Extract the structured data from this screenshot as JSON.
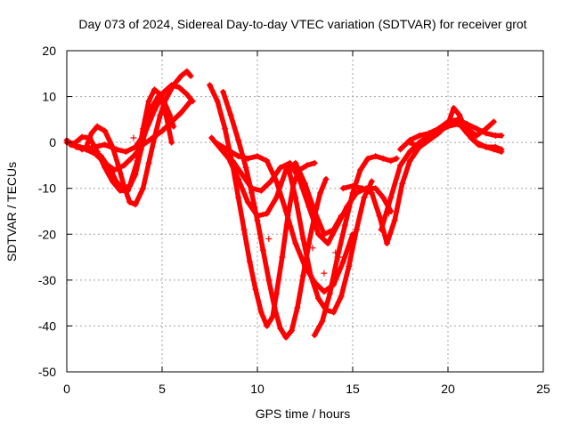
{
  "chart_data": {
    "type": "scatter",
    "title": "Day 073 of 2024, Sidereal Day-to-day VTEC variation (SDTVAR) for receiver grot",
    "xlabel": "GPS time / hours",
    "ylabel": "SDTVAR / TECUs",
    "xlim": [
      0,
      25
    ],
    "ylim": [
      -50,
      20
    ],
    "xticks": [
      0,
      5,
      10,
      15,
      20,
      25
    ],
    "yticks": [
      -50,
      -40,
      -30,
      -20,
      -10,
      0,
      10,
      20
    ],
    "xtick_labels": [
      "0",
      "5",
      "10",
      "15",
      "20",
      "25"
    ],
    "ytick_labels": [
      "-50",
      "-40",
      "-30",
      "-20",
      "-10",
      "0",
      "10",
      "20"
    ],
    "grid": true,
    "marker": "plus",
    "color": "#ff0000",
    "series": [
      {
        "x": [
          0.0,
          0.3,
          0.7,
          1.2,
          1.8,
          2.3,
          2.6,
          2.9,
          3.3,
          3.7,
          4.0,
          4.3,
          4.6,
          4.9,
          5.2,
          5.5
        ],
        "y": [
          0.5,
          -0.5,
          -1.0,
          -1.5,
          -3.0,
          -6.0,
          -8.5,
          -10.0,
          -9.5,
          -4.0,
          3.0,
          9.0,
          11.5,
          10.5,
          6.0,
          0.0
        ]
      },
      {
        "x": [
          0.0,
          0.4,
          0.8,
          1.2,
          1.6,
          2.0,
          2.4,
          2.8,
          3.2,
          3.6,
          3.9,
          4.2,
          4.5,
          4.8,
          5.1,
          5.4,
          5.6
        ],
        "y": [
          0.0,
          -0.2,
          1.2,
          1.0,
          -2.0,
          -5.5,
          -8.5,
          -10.5,
          -10.5,
          -7.0,
          -1.5,
          4.0,
          8.0,
          10.0,
          9.0,
          6.0,
          3.5
        ]
      },
      {
        "x": [
          0.2,
          0.6,
          1.0,
          1.3,
          1.6,
          2.0,
          2.4,
          2.7,
          3.0,
          3.3,
          3.6,
          4.0,
          4.3,
          4.6,
          4.9,
          5.2,
          5.6,
          6.0,
          6.3,
          6.5
        ],
        "y": [
          -0.5,
          -1.0,
          -1.2,
          2.0,
          3.5,
          2.5,
          -1.0,
          -5.0,
          -9.5,
          -13.0,
          -13.5,
          -10.0,
          -4.5,
          1.0,
          6.0,
          9.5,
          12.5,
          14.5,
          15.5,
          14.5
        ]
      },
      {
        "x": [
          0.8,
          1.4,
          2.0,
          2.6,
          3.1,
          3.6,
          4.1,
          4.6,
          5.1,
          5.5,
          5.9,
          6.3,
          6.6
        ],
        "y": [
          -1.5,
          -1.0,
          -0.5,
          -1.5,
          -2.0,
          -1.0,
          2.0,
          7.0,
          11.0,
          12.5,
          12.0,
          10.5,
          9.0
        ]
      },
      {
        "x": [
          0.5,
          1.0,
          1.5,
          2.0,
          2.5,
          3.0,
          3.5,
          4.0,
          4.5,
          5.0,
          5.5,
          6.0,
          6.5
        ],
        "y": [
          -1.0,
          -1.5,
          -2.5,
          -4.5,
          -6.0,
          -5.0,
          -3.0,
          -0.5,
          1.0,
          2.5,
          4.5,
          6.5,
          9.0
        ]
      },
      {
        "x": [
          7.5,
          7.9,
          8.3,
          8.7,
          9.0,
          9.3,
          9.6,
          9.9,
          10.2,
          10.5,
          10.8,
          11.0,
          11.3,
          11.6,
          11.9,
          12.2,
          12.6,
          13.0
        ],
        "y": [
          12.5,
          9.0,
          3.0,
          -5.0,
          -12.0,
          -19.0,
          -26.0,
          -32.0,
          -37.0,
          -40.0,
          -38.0,
          -33.0,
          -25.0,
          -16.0,
          -9.0,
          -6.0,
          -5.0,
          -4.5
        ]
      },
      {
        "x": [
          8.2,
          8.6,
          9.0,
          9.4,
          9.7,
          10.0,
          10.3,
          10.6,
          10.9,
          11.2,
          11.5,
          11.8,
          12.1,
          12.4,
          12.7,
          13.0,
          13.3,
          13.6
        ],
        "y": [
          11.0,
          6.0,
          0.5,
          -5.5,
          -11.0,
          -17.0,
          -23.5,
          -30.0,
          -36.0,
          -40.5,
          -42.5,
          -41.0,
          -36.0,
          -29.0,
          -22.0,
          -16.0,
          -11.0,
          -8.0
        ]
      },
      {
        "x": [
          7.6,
          8.0,
          8.5,
          9.0,
          9.5,
          10.0,
          10.5,
          11.0,
          11.5,
          12.0,
          12.5,
          13.0,
          13.5,
          14.0,
          14.4
        ],
        "y": [
          1.0,
          -1.0,
          -3.5,
          -8.0,
          -13.0,
          -16.0,
          -15.5,
          -12.0,
          -6.0,
          -4.5,
          -9.0,
          -15.0,
          -20.0,
          -19.0,
          -16.0
        ]
      },
      {
        "x": [
          7.8,
          8.4,
          9.0,
          9.5,
          10.0,
          10.5,
          11.0,
          11.5,
          12.0,
          12.5,
          13.0,
          13.5,
          14.0,
          14.5,
          15.0
        ],
        "y": [
          0.0,
          -1.5,
          -3.0,
          -3.5,
          -3.0,
          -4.0,
          -8.5,
          -15.0,
          -22.0,
          -27.0,
          -30.5,
          -32.5,
          -31.0,
          -26.0,
          -20.0
        ]
      },
      {
        "x": [
          8.7,
          9.2,
          9.7,
          10.2,
          10.7,
          11.2,
          11.7,
          12.2,
          12.7,
          13.2,
          13.7,
          14.2,
          14.7,
          15.2,
          15.7,
          16.2,
          16.6,
          17.0
        ],
        "y": [
          -4.0,
          -7.0,
          -10.0,
          -10.5,
          -8.5,
          -5.5,
          -4.5,
          -8.0,
          -14.0,
          -20.0,
          -22.0,
          -18.0,
          -14.0,
          -11.0,
          -10.0,
          -10.0,
          -12.0,
          -15.0
        ]
      },
      {
        "x": [
          11.6,
          12.0,
          12.4,
          12.8,
          13.2,
          13.6,
          14.0,
          14.4,
          14.8,
          15.2,
          15.6,
          16.0
        ],
        "y": [
          -5.0,
          -12.0,
          -21.0,
          -29.0,
          -34.0,
          -36.5,
          -37.0,
          -33.5,
          -27.0,
          -19.0,
          -12.0,
          -8.5
        ]
      },
      {
        "x": [
          13.0,
          13.4,
          13.8,
          14.2,
          14.6,
          15.0,
          15.4,
          15.8,
          16.2,
          16.6,
          17.0,
          17.3
        ],
        "y": [
          -42.0,
          -39.0,
          -33.0,
          -25.0,
          -18.0,
          -11.0,
          -6.0,
          -3.5,
          -3.0,
          -3.5,
          -4.0,
          -3.5
        ]
      },
      {
        "x": [
          14.5,
          15.0,
          15.5,
          16.0,
          16.4,
          16.8,
          17.2,
          17.6,
          18.0,
          18.5,
          19.0,
          19.5,
          20.0,
          20.5,
          21.0,
          21.5,
          22.0,
          22.4
        ],
        "y": [
          -10.0,
          -9.5,
          -10.0,
          -11.0,
          -16.0,
          -22.0,
          -17.0,
          -9.0,
          -4.0,
          -1.0,
          1.0,
          2.5,
          3.5,
          4.0,
          3.0,
          1.5,
          3.0,
          4.5
        ]
      },
      {
        "x": [
          16.5,
          17.0,
          17.5,
          18.0,
          18.5,
          19.0,
          19.5,
          20.0,
          20.3,
          20.6,
          20.9,
          21.2,
          21.6,
          22.0,
          22.4,
          22.8
        ],
        "y": [
          -19.0,
          -12.0,
          -5.0,
          -2.0,
          0.0,
          1.5,
          3.0,
          4.0,
          7.5,
          6.0,
          3.0,
          1.0,
          -0.5,
          -1.0,
          -1.5,
          -2.0
        ]
      },
      {
        "x": [
          17.5,
          18.0,
          18.5,
          19.0,
          19.5,
          20.0,
          20.5,
          21.0,
          21.5,
          22.0,
          22.5,
          22.8
        ],
        "y": [
          -1.5,
          0.5,
          1.5,
          2.0,
          3.0,
          4.5,
          5.0,
          4.0,
          3.0,
          2.0,
          1.5,
          1.5
        ]
      },
      {
        "x": [
          18.0,
          18.5,
          19.0,
          19.5,
          20.0,
          20.5,
          21.0,
          21.5,
          22.0,
          22.5,
          22.8
        ],
        "y": [
          0.0,
          -1.0,
          0.5,
          2.0,
          4.0,
          4.5,
          2.0,
          0.0,
          -1.0,
          -1.0,
          -1.5
        ]
      }
    ],
    "scattered_points": [
      {
        "x": 10.6,
        "y": -21.0
      },
      {
        "x": 12.9,
        "y": -23.0
      },
      {
        "x": 13.5,
        "y": -28.5
      },
      {
        "x": 13.6,
        "y": -35.0
      },
      {
        "x": 14.1,
        "y": -24.0
      },
      {
        "x": 14.3,
        "y": -25.0
      },
      {
        "x": 3.5,
        "y": 1.0
      },
      {
        "x": 16.9,
        "y": -15.5
      }
    ]
  }
}
